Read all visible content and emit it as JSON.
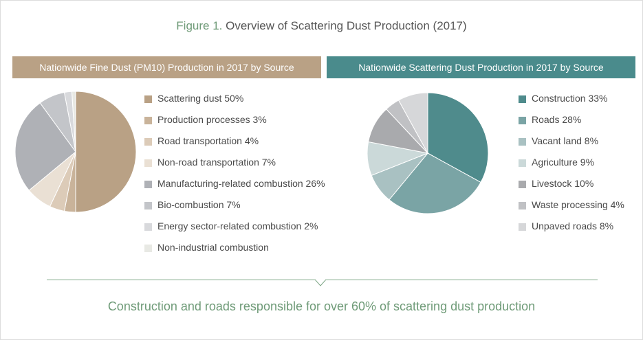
{
  "figure": {
    "number": "Figure 1.",
    "title": "Overview of Scattering Dust Production (2017)",
    "conclusion": "Construction and roads responsible for over 60% of scattering dust production"
  },
  "chart_data": [
    {
      "type": "pie",
      "title": "Nationwide Fine Dust (PM10) Production in 2017 by Source",
      "header_color": "#b9a185",
      "slices": [
        {
          "label": "Scattering dust 50%",
          "value": 50,
          "color": "#b9a185"
        },
        {
          "label": "Production processes 3%",
          "value": 3,
          "color": "#c9b39a"
        },
        {
          "label": "Road transportation 4%",
          "value": 4,
          "color": "#dccbb8"
        },
        {
          "label": "Non-road transportation 7%",
          "value": 7,
          "color": "#eae0d4"
        },
        {
          "label": "Manufacturing-related combustion 26%",
          "value": 26,
          "color": "#afb1b6"
        },
        {
          "label": "Bio-combustion 7%",
          "value": 7,
          "color": "#c3c5c9"
        },
        {
          "label": "Energy sector-related combustion 2%",
          "value": 2,
          "color": "#d8d9dc"
        },
        {
          "label": "Non-industrial combustion",
          "value": 1,
          "color": "#e8e9e4"
        }
      ]
    },
    {
      "type": "pie",
      "title": "Nationwide Scattering Dust Production in 2017 by Source",
      "header_color": "#4a8b8c",
      "slices": [
        {
          "label": "Construction 33%",
          "value": 33,
          "color": "#4f8b8c"
        },
        {
          "label": "Roads 28%",
          "value": 28,
          "color": "#7aa4a5"
        },
        {
          "label": "Vacant land 8%",
          "value": 8,
          "color": "#a9c1c2"
        },
        {
          "label": "Agriculture 9%",
          "value": 9,
          "color": "#cbd9d9"
        },
        {
          "label": "Livestock 10%",
          "value": 10,
          "color": "#a9aaad"
        },
        {
          "label": "Waste processing 4%",
          "value": 4,
          "color": "#c0c1c4"
        },
        {
          "label": "Unpaved roads 8%",
          "value": 8,
          "color": "#d6d7d9"
        }
      ]
    }
  ]
}
